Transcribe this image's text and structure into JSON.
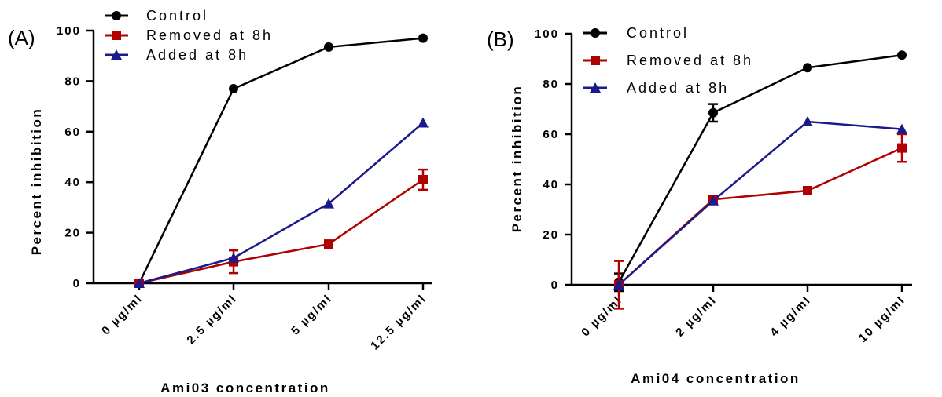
{
  "chart_data": [
    {
      "panel": "(A)",
      "type": "line",
      "categories": [
        "0 µg/ml",
        "2.5 µg/ml",
        "5 µg/ml",
        "12.5 µg/ml"
      ],
      "xlabel": "Ami03 concentration",
      "ylabel": "Percent inhibition",
      "ylim": [
        0,
        100
      ],
      "yticks": [
        "0",
        "20",
        "40",
        "60",
        "80",
        "100"
      ],
      "legend_position": "top-left",
      "series": [
        {
          "name": "Control",
          "marker": "circle",
          "color": "#000000",
          "values": [
            0,
            77,
            93.5,
            97
          ],
          "errors": [
            0.8,
            0.8,
            0.6,
            0.6
          ]
        },
        {
          "name": "Removed at 8h",
          "marker": "square",
          "color": "#b00000",
          "values": [
            0,
            8.5,
            15.5,
            41
          ],
          "errors": [
            0.5,
            4.5,
            0.8,
            4
          ]
        },
        {
          "name": "Added at 8h",
          "marker": "triangle",
          "color": "#1a1a8c",
          "values": [
            0,
            10,
            31.5,
            63.5
          ],
          "errors": [
            0,
            0.5,
            0.5,
            0.5
          ]
        }
      ]
    },
    {
      "panel": "(B)",
      "type": "line",
      "categories": [
        "0 µg/ml",
        "2 µg/ml",
        "4 µg/ml",
        "10 µg/ml"
      ],
      "xlabel": "Ami04 concentration",
      "ylabel": "Percent inhibition",
      "ylim": [
        0,
        100
      ],
      "yticks": [
        "0",
        "20",
        "40",
        "60",
        "80",
        "100"
      ],
      "legend_position": "top-left",
      "series": [
        {
          "name": "Control",
          "marker": "circle",
          "color": "#000000",
          "values": [
            1,
            68.5,
            86.5,
            91.5
          ],
          "errors": [
            3.5,
            3.5,
            0.6,
            0.6
          ]
        },
        {
          "name": "Removed at 8h",
          "marker": "square",
          "color": "#b00000",
          "values": [
            0,
            34,
            37.5,
            54.5
          ],
          "errors": [
            9.5,
            1,
            0.8,
            5.5
          ]
        },
        {
          "name": "Added at 8h",
          "marker": "triangle",
          "color": "#1a1a8c",
          "values": [
            0,
            33.5,
            65,
            62
          ],
          "errors": [
            0,
            0.5,
            0.5,
            0.5
          ]
        }
      ]
    }
  ]
}
